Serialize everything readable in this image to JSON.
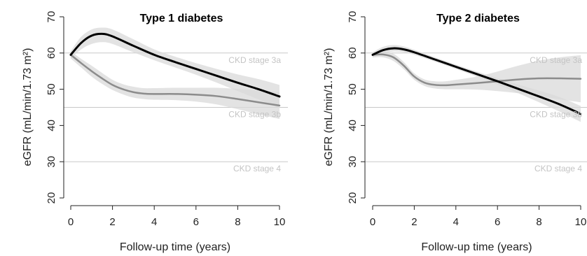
{
  "chart_data": [
    {
      "type": "line",
      "title": "Type 1 diabetes",
      "xlabel": "Follow-up time (years)",
      "ylabel": "eGFR (mL/min/1.73 m²)",
      "xlim": [
        0,
        10
      ],
      "ylim": [
        20,
        70
      ],
      "xticks": [
        "0",
        "2",
        "4",
        "6",
        "8",
        "10"
      ],
      "yticks": [
        "20",
        "30",
        "40",
        "50",
        "60",
        "70"
      ],
      "reference_lines": [
        {
          "y": 60,
          "label": "CKD stage 3a"
        },
        {
          "y": 45,
          "label": "CKD stage 3b"
        },
        {
          "y": 30,
          "label": "CKD stage 4"
        }
      ],
      "series": [
        {
          "color": "#000000",
          "x": [
            0,
            0.5,
            1,
            1.5,
            2,
            3,
            4,
            5,
            6,
            7,
            8,
            9,
            10
          ],
          "y": [
            59.5,
            62.8,
            64.8,
            65.3,
            64.6,
            62,
            59.5,
            57.5,
            55.6,
            53.7,
            51.8,
            50,
            48
          ],
          "ci_lower": [
            58.5,
            61,
            62.5,
            63,
            62.5,
            60.2,
            58,
            56,
            54,
            51.8,
            49.5,
            47.2,
            44.8
          ],
          "ci_upper": [
            60.5,
            64.5,
            66.5,
            67,
            66.5,
            63.8,
            61,
            59,
            57.2,
            55.6,
            54.1,
            52.8,
            51.2
          ]
        },
        {
          "color": "#8c8c8c",
          "x": [
            0,
            0.5,
            1,
            1.5,
            2,
            2.5,
            3,
            3.5,
            4,
            5,
            6,
            7,
            8,
            9,
            10
          ],
          "y": [
            59.5,
            57.2,
            55,
            53,
            51.2,
            50,
            49.2,
            48.8,
            48.7,
            48.7,
            48.5,
            48.1,
            47.3,
            46.4,
            45.5
          ],
          "ci_lower": [
            58.5,
            56,
            53.5,
            51.5,
            49.8,
            48.6,
            47.7,
            47.3,
            47.1,
            47,
            46.6,
            45.8,
            44.5,
            43.1,
            41.8
          ],
          "ci_upper": [
            60.5,
            58.4,
            56.5,
            54.5,
            52.6,
            51.4,
            50.7,
            50.3,
            50.3,
            50.4,
            50.4,
            50.4,
            50.1,
            49.7,
            49.2
          ]
        }
      ]
    },
    {
      "type": "line",
      "title": "Type 2 diabetes",
      "xlabel": "Follow-up time (years)",
      "ylabel": "eGFR (mL/min/1.73 m²)",
      "xlim": [
        0,
        10
      ],
      "ylim": [
        20,
        70
      ],
      "xticks": [
        "0",
        "2",
        "4",
        "6",
        "8",
        "10"
      ],
      "yticks": [
        "20",
        "30",
        "40",
        "50",
        "60",
        "70"
      ],
      "reference_lines": [
        {
          "y": 60,
          "label": "CKD stage 3a"
        },
        {
          "y": 45,
          "label": "CKD stage 3b"
        },
        {
          "y": 30,
          "label": "CKD stage 4"
        }
      ],
      "series": [
        {
          "color": "#000000",
          "x": [
            0,
            0.5,
            1,
            1.5,
            2,
            3,
            4,
            5,
            6,
            7,
            8,
            9,
            10
          ],
          "y": [
            59.5,
            60.8,
            61.3,
            61,
            60.2,
            58.2,
            56.2,
            54.2,
            52.2,
            50.1,
            48,
            45.8,
            43.2
          ],
          "ci_lower": [
            58.8,
            59.9,
            60.4,
            60.2,
            59.5,
            57.6,
            55.6,
            53.5,
            51.3,
            48.9,
            46.4,
            43.8,
            41
          ],
          "ci_upper": [
            60.2,
            61.7,
            62.2,
            61.8,
            60.9,
            58.8,
            56.8,
            54.9,
            53.1,
            51.3,
            49.6,
            47.8,
            45.4
          ]
        },
        {
          "color": "#8c8c8c",
          "x": [
            0,
            0.5,
            1,
            1.5,
            2,
            2.5,
            3,
            3.5,
            4,
            5,
            6,
            7,
            8,
            9,
            10
          ],
          "y": [
            59.5,
            59.6,
            58.8,
            56.5,
            53.5,
            51.8,
            51.2,
            51.1,
            51.3,
            51.7,
            52.2,
            52.7,
            53,
            53,
            52.9
          ],
          "ci_lower": [
            58.8,
            58.8,
            57.8,
            55.5,
            52.6,
            50.9,
            50.2,
            50,
            50,
            49.9,
            49.5,
            48.9,
            48.1,
            47.2,
            46.4
          ],
          "ci_upper": [
            60.2,
            60.4,
            59.8,
            57.5,
            54.4,
            52.7,
            52.2,
            52.2,
            52.6,
            53.5,
            54.9,
            56.5,
            57.9,
            58.8,
            59.4
          ]
        }
      ]
    }
  ]
}
